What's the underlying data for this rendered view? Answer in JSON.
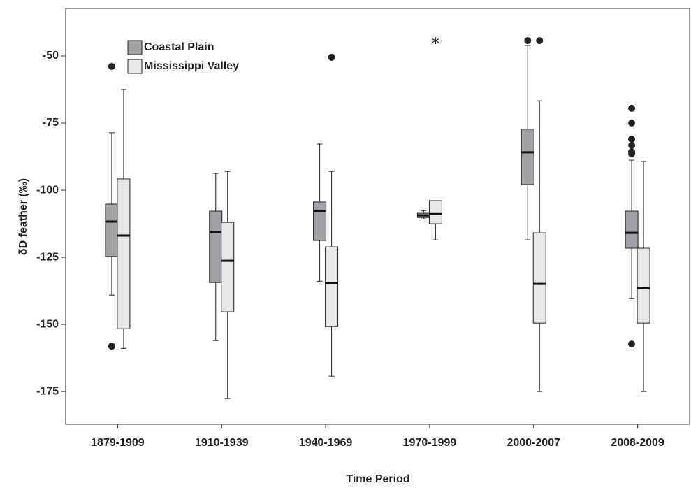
{
  "chart_data": {
    "type": "box",
    "x_label": "Time Period",
    "y_label": "δD feather (‰)",
    "categories": [
      "1879-1909",
      "1910-1939",
      "1940-1969",
      "1970-1999",
      "2000-2007",
      "2008-2009"
    ],
    "ylim": [
      -187.2,
      -32.3
    ],
    "yticks": [
      -175,
      -150,
      -125,
      -100,
      -75,
      -50
    ],
    "legend": "top-left",
    "series": [
      {
        "name": "Coastal Plain",
        "color": "#a2a2a6",
        "whisker_low": [
          -139.1,
          -156.0,
          -133.9,
          -110.7,
          -118.5,
          -140.4
        ],
        "q1": [
          -124.7,
          -134.4,
          -118.75,
          -110.2,
          -97.9,
          -121.6
        ],
        "median": [
          -111.7,
          -115.6,
          -107.8,
          -109.4,
          -85.9,
          -115.9
        ],
        "q3": [
          -105.2,
          -107.8,
          -104.4,
          -108.6,
          -77.3,
          -107.8
        ],
        "whisker_high": [
          -78.6,
          -93.75,
          -82.8,
          -107.6,
          -46.1,
          -88.8
        ],
        "outliers": [
          [
            -53.9,
            -158.1
          ],
          [],
          [],
          [],
          [
            -44.3
          ],
          [
            -69.5,
            -75,
            -81,
            -83.3,
            -85.7,
            -86.5,
            -157.3
          ]
        ],
        "extremes": [
          [],
          [],
          [],
          [],
          [],
          []
        ]
      },
      {
        "name": "Mississippi Valley",
        "color": "#e8e8e8",
        "whisker_low": [
          -158.9,
          -177.6,
          -169.3,
          -118.5,
          -175,
          -175
        ],
        "q1": [
          -151.6,
          -145.3,
          -150.8,
          -112.5,
          -149.5,
          -149.5
        ],
        "median": [
          -116.9,
          -126.3,
          -134.6,
          -108.9,
          -134.9,
          -136.5
        ],
        "q3": [
          -95.8,
          -112,
          -121.1,
          -103.9,
          -115.9,
          -121.6
        ],
        "whisker_high": [
          -62.5,
          -93,
          -93,
          -103.9,
          -66.7,
          -89.3
        ],
        "outliers": [
          [],
          [],
          [
            -50.5
          ],
          [],
          [
            -44.3
          ],
          []
        ],
        "extremes": [
          [],
          [],
          [],
          [
            -44.3
          ],
          [],
          []
        ]
      }
    ]
  }
}
